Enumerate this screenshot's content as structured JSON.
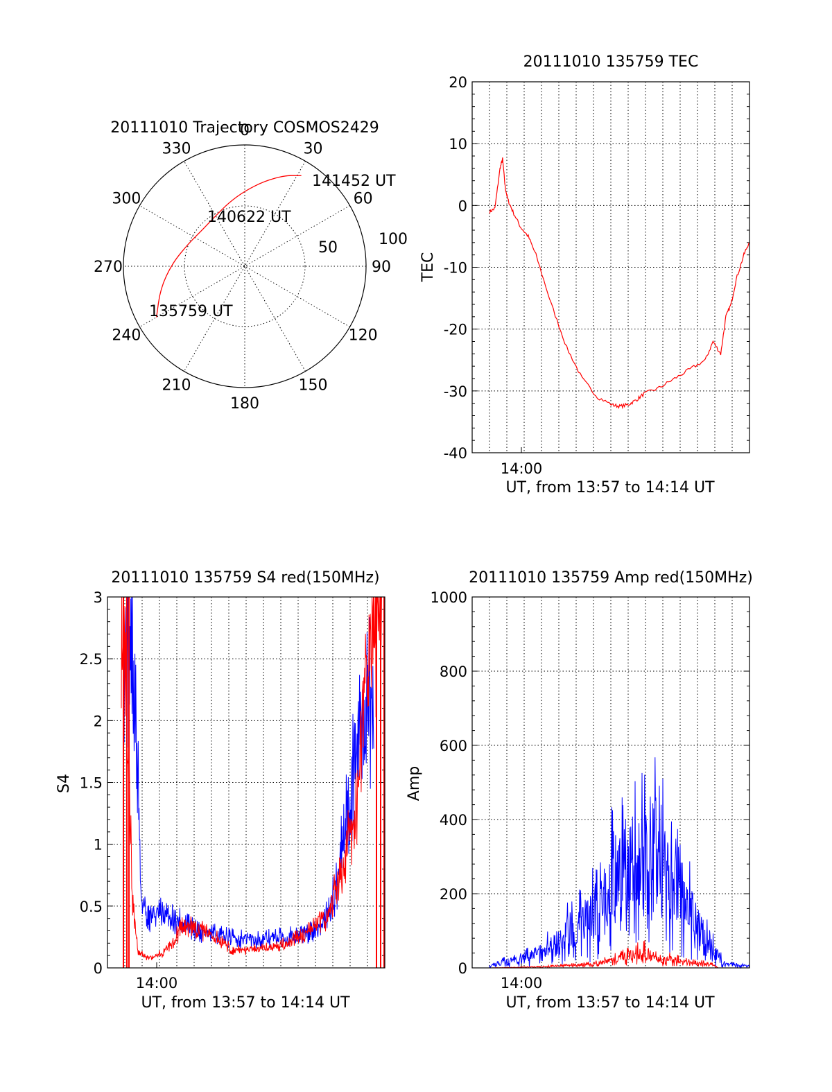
{
  "colors": {
    "primary": "#ff0000",
    "secondary": "#0000ff",
    "axis": "#000000"
  },
  "chart_data": [
    {
      "type": "polar",
      "title": "20111010 Trajectory COSMOS2429",
      "azimuth_labels": [
        "0",
        "30",
        "60",
        "90",
        "120",
        "150",
        "180",
        "210",
        "240",
        "270",
        "300",
        "330"
      ],
      "radius_labels": [
        "50",
        "100"
      ],
      "track": {
        "color": "#ff0000",
        "points": [
          {
            "az": 240,
            "r": 84,
            "label": "135759 UT"
          },
          {
            "az": 255,
            "r": 72
          },
          {
            "az": 272,
            "r": 60
          },
          {
            "az": 292,
            "r": 50
          },
          {
            "az": 311,
            "r": 46
          },
          {
            "az": 330,
            "r": 48
          },
          {
            "az": 346,
            "r": 54
          },
          {
            "az": 0,
            "r": 62
          },
          {
            "az": 13,
            "r": 72
          },
          {
            "az": 24,
            "r": 82
          },
          {
            "az": 32,
            "r": 88,
            "label": "141452 UT"
          }
        ],
        "mid_label": "140622 UT"
      }
    },
    {
      "type": "line",
      "title": "20111010 135759 TEC",
      "xlabel": "UT, from 13:57 to 14:14 UT",
      "ylabel": "TEC",
      "x_tick_label": "14:00",
      "ylim": [
        -40,
        20
      ],
      "y_ticks": [
        "20",
        "10",
        "0",
        "-10",
        "-20",
        "-30",
        "-40"
      ],
      "x_range_minutes": [
        "13:57:59",
        "14:14:52"
      ],
      "series": [
        {
          "color": "#ff0000",
          "x": [
            "13:58:00",
            "13:58:20",
            "13:58:40",
            "13:58:50",
            "13:59:00",
            "13:59:10",
            "13:59:30",
            "14:00:00",
            "14:00:30",
            "14:01:00",
            "14:02:00",
            "14:03:00",
            "14:04:00",
            "14:05:00",
            "14:06:00",
            "14:06:30",
            "14:07:00",
            "14:07:30",
            "14:08:00",
            "14:09:00",
            "14:10:00",
            "14:11:00",
            "14:12:00",
            "14:12:30",
            "14:13:00",
            "14:13:20",
            "14:13:40",
            "14:14:00",
            "14:14:30",
            "14:14:50"
          ],
          "y": [
            -1,
            -0.5,
            6,
            7.5,
            3,
            1,
            -1,
            -3.5,
            -5,
            -8,
            -16,
            -23,
            -28,
            -31,
            -32.3,
            -32.5,
            -32.2,
            -31.5,
            -30.5,
            -29.5,
            -28,
            -26.5,
            -25,
            -22,
            -24,
            -18,
            -16,
            -12,
            -8,
            -6
          ]
        }
      ]
    },
    {
      "type": "line",
      "title": "20111010 135759 S4 red(150MHz)",
      "xlabel": "UT, from 13:57 to 14:14 UT",
      "ylabel": "S4",
      "x_tick_label": "14:00",
      "ylim": [
        0,
        3
      ],
      "y_ticks": [
        "3",
        "2.5",
        "2",
        "1.5",
        "1",
        "0.5",
        "0"
      ],
      "series": [
        {
          "color": "#0000ff",
          "profile": [
            [
              0.06,
              2.8
            ],
            [
              0.07,
              2.6
            ],
            [
              0.09,
              2.4
            ],
            [
              0.11,
              1.6
            ],
            [
              0.12,
              0.6
            ],
            [
              0.14,
              0.45
            ],
            [
              0.2,
              0.42
            ],
            [
              0.28,
              0.35
            ],
            [
              0.35,
              0.28
            ],
            [
              0.45,
              0.24
            ],
            [
              0.55,
              0.23
            ],
            [
              0.65,
              0.25
            ],
            [
              0.72,
              0.28
            ],
            [
              0.78,
              0.35
            ],
            [
              0.82,
              0.6
            ],
            [
              0.86,
              1.2
            ],
            [
              0.9,
              1.8
            ],
            [
              0.94,
              2.2
            ],
            [
              0.96,
              1.9
            ]
          ],
          "noise": 0.35
        },
        {
          "color": "#ff0000",
          "profile": [
            [
              0.05,
              3.0
            ],
            [
              0.07,
              2.0
            ],
            [
              0.09,
              0.6
            ],
            [
              0.11,
              0.12
            ],
            [
              0.15,
              0.08
            ],
            [
              0.2,
              0.12
            ],
            [
              0.28,
              0.35
            ],
            [
              0.35,
              0.3
            ],
            [
              0.45,
              0.15
            ],
            [
              0.55,
              0.15
            ],
            [
              0.65,
              0.2
            ],
            [
              0.72,
              0.28
            ],
            [
              0.8,
              0.45
            ],
            [
              0.86,
              0.9
            ],
            [
              0.9,
              1.4
            ],
            [
              0.93,
              2.3
            ],
            [
              0.96,
              2.8
            ],
            [
              0.99,
              3.0
            ]
          ],
          "noise": 0.3
        }
      ]
    },
    {
      "type": "line",
      "title": "20111010 135759 Amp red(150MHz)",
      "xlabel": "UT, from 13:57 to 14:14 UT",
      "ylabel": "Amp",
      "x_tick_label": "14:00",
      "ylim": [
        0,
        1000
      ],
      "y_ticks": [
        "1000",
        "800",
        "600",
        "400",
        "200",
        "0"
      ],
      "series": [
        {
          "color": "#0000ff",
          "profile": [
            [
              0.0,
              5
            ],
            [
              0.05,
              15
            ],
            [
              0.15,
              30
            ],
            [
              0.22,
              50
            ],
            [
              0.3,
              100
            ],
            [
              0.36,
              130
            ],
            [
              0.42,
              150
            ],
            [
              0.46,
              240
            ],
            [
              0.52,
              260
            ],
            [
              0.58,
              300
            ],
            [
              0.63,
              330
            ],
            [
              0.68,
              250
            ],
            [
              0.74,
              200
            ],
            [
              0.8,
              120
            ],
            [
              0.85,
              70
            ],
            [
              0.9,
              10
            ],
            [
              1.0,
              5
            ]
          ],
          "noise": 0.9
        },
        {
          "color": "#ff0000",
          "profile": [
            [
              0.0,
              0
            ],
            [
              0.2,
              3
            ],
            [
              0.4,
              10
            ],
            [
              0.5,
              25
            ],
            [
              0.55,
              35
            ],
            [
              0.6,
              45
            ],
            [
              0.65,
              20
            ],
            [
              0.7,
              25
            ],
            [
              0.75,
              15
            ],
            [
              0.85,
              10
            ],
            [
              0.88,
              0
            ],
            [
              1.0,
              0
            ]
          ],
          "noise": 0.8
        }
      ]
    }
  ]
}
